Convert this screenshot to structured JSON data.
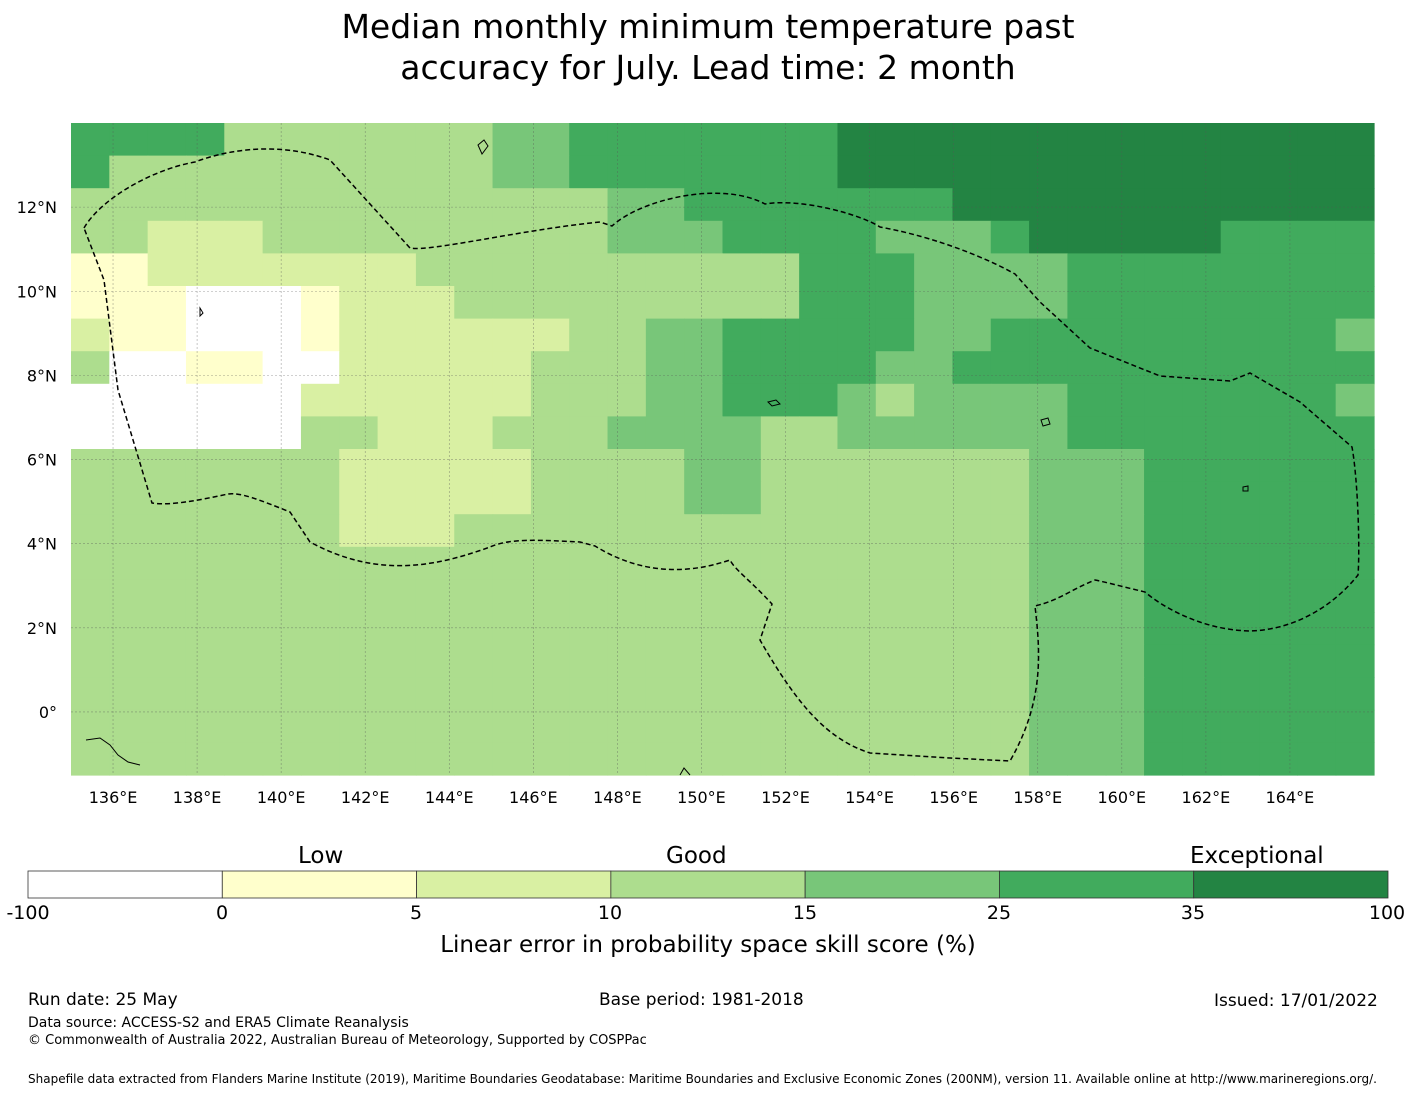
{
  "title_line1": "Median monthly minimum temperature past",
  "title_line2": "accuracy for July. Lead time: 2 month",
  "map": {
    "lon_labels": [
      "136°E",
      "138°E",
      "140°E",
      "142°E",
      "144°E",
      "146°E",
      "148°E",
      "150°E",
      "152°E",
      "154°E",
      "156°E",
      "158°E",
      "160°E",
      "162°E",
      "164°E"
    ],
    "lat_labels": [
      "12°N",
      "10°N",
      "8°N",
      "6°N",
      "4°N",
      "2°N",
      "0°"
    ],
    "extent": {
      "lon_min": 135.0,
      "lon_max": 166.0,
      "lat_min": -1.5,
      "lat_max": 14.0
    },
    "skill_grid_lon_start": 135.0,
    "skill_grid_lat_top": 14.0,
    "skill_grid_cell_deg": 0.833,
    "skill_grid_classes_note_legend": "0:-100..0, 1:0..5, 2:5..10, 3:10..15, 4:15..25, 5:25..35, 6:35..100",
    "skill_grid": [
      "5555333333344555555566666666666666",
      "5333333333344555555566666666666666",
      "3333333333333344555555566666666666",
      "3322233333333344455554445666665555",
      "1122222223333333333555444455555555",
      "1110001222333333333555444455555555",
      "2110001222222334455555445555555554",
      "3001100222223334455554455555555555",
      "0000002222223334455543444455555554",
      "0000003322233344443344444455555555",
      "3333333222223333443333333444555555",
      "3333333222223333443333333444555555",
      "3333333222333333333333333444555555",
      "3333333333333333333333333444555555",
      "3333333333333333333333333444555555",
      "3333333333333333333333333444555555",
      "3333333333333333333333333444555555",
      "3333333333333333333333333444555555",
      "3333333333333333333333333444555555",
      "3333333333333333333333333444555555"
    ]
  },
  "legend": {
    "category_labels": [
      "Low",
      "Good",
      "Exceptional"
    ],
    "bounds": [
      "-100",
      "0",
      "5",
      "10",
      "15",
      "25",
      "35",
      "100"
    ],
    "colors": [
      "#ffffff",
      "#ffffcc",
      "#d9f0a3",
      "#addd8e",
      "#78c679",
      "#41ab5d",
      "#238443"
    ],
    "title": "Linear error in probability space skill score (%)"
  },
  "footer": {
    "run_date": "Run date: 25 May",
    "base_period": "Base period: 1981-2018",
    "issued": "Issued: 17/01/2022",
    "data_source": "Data source: ACCESS-S2 and ERA5 Climate Reanalysis",
    "copyright": "© Commonwealth of Australia 2022, Australian Bureau of Meteorology, Supported by COSPPac",
    "shapefile": "Shapefile data extracted from Flanders Marine Institute (2019), Maritime Boundaries Geodatabase: Maritime Boundaries and Exclusive Economic Zones (200NM), version 11. Available online at http://www.marineregions.org/."
  }
}
